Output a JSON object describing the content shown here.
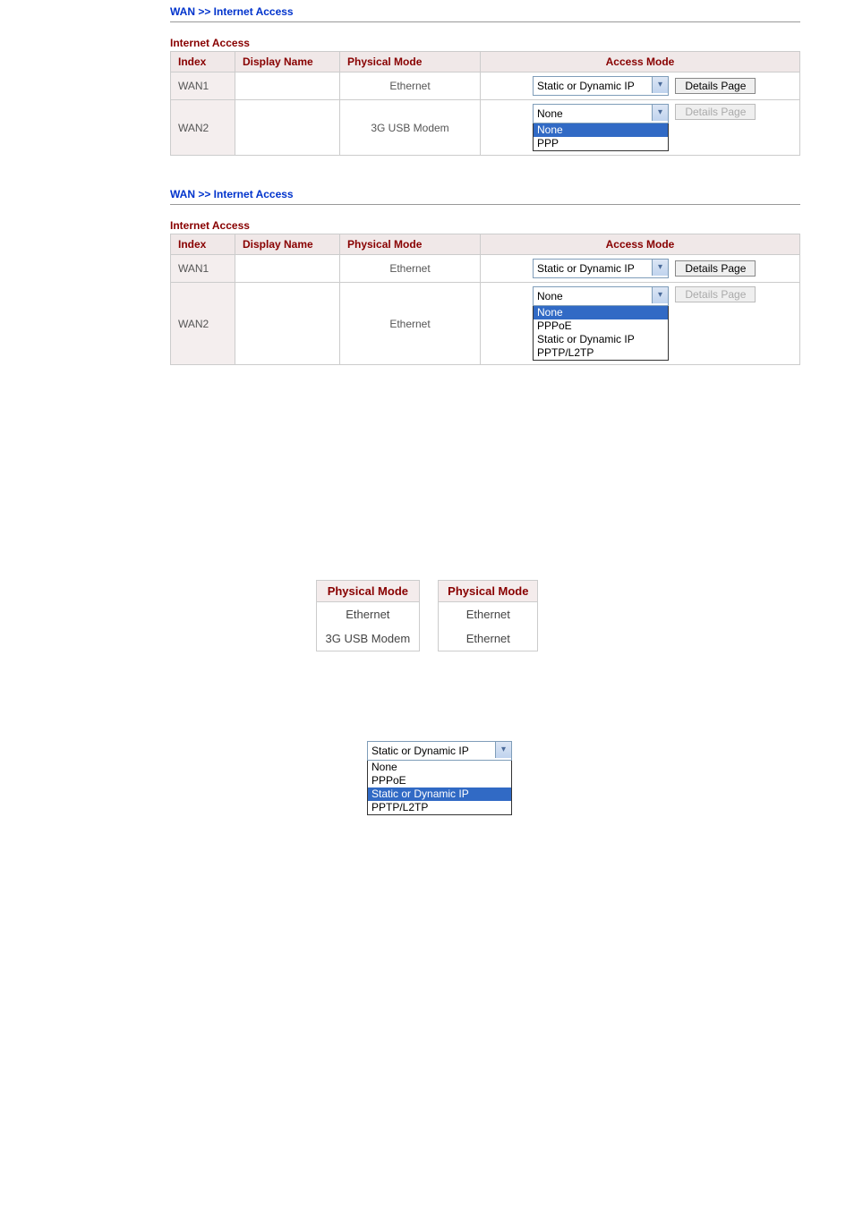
{
  "breadcrumb": "WAN >> Internet Access",
  "section_title": "Internet Access",
  "headers": {
    "index": "Index",
    "display_name": "Display Name",
    "physical_mode": "Physical Mode",
    "access_mode": "Access Mode"
  },
  "details_label": "Details Page",
  "panel1": {
    "rows": [
      {
        "index": "WAN1",
        "display_name": "",
        "physical_mode": "Ethernet",
        "access_selected": "Static or Dynamic IP",
        "details_enabled": true
      },
      {
        "index": "WAN2",
        "display_name": "",
        "physical_mode": "3G USB Modem",
        "access_selected": "None",
        "details_enabled": false
      }
    ],
    "dropdown_open_row": 1,
    "dropdown_options": [
      "None",
      "PPP"
    ],
    "dropdown_selected_index": 0
  },
  "panel2": {
    "rows": [
      {
        "index": "WAN1",
        "display_name": "",
        "physical_mode": "Ethernet",
        "access_selected": "Static or Dynamic IP",
        "details_enabled": true
      },
      {
        "index": "WAN2",
        "display_name": "",
        "physical_mode": "Ethernet",
        "access_selected": "None",
        "details_enabled": false
      }
    ],
    "dropdown_open_row": 1,
    "dropdown_options": [
      "None",
      "PPPoE",
      "Static or Dynamic IP",
      "PPTP/L2TP"
    ],
    "dropdown_selected_index": 0
  },
  "compare": {
    "header": "Physical Mode",
    "left": [
      "Ethernet",
      "3G USB Modem"
    ],
    "right": [
      "Ethernet",
      "Ethernet"
    ]
  },
  "standalone": {
    "selected": "Static or Dynamic IP",
    "options": [
      "None",
      "PPPoE",
      "Static or Dynamic IP",
      "PPTP/L2TP"
    ],
    "selected_index": 2
  }
}
